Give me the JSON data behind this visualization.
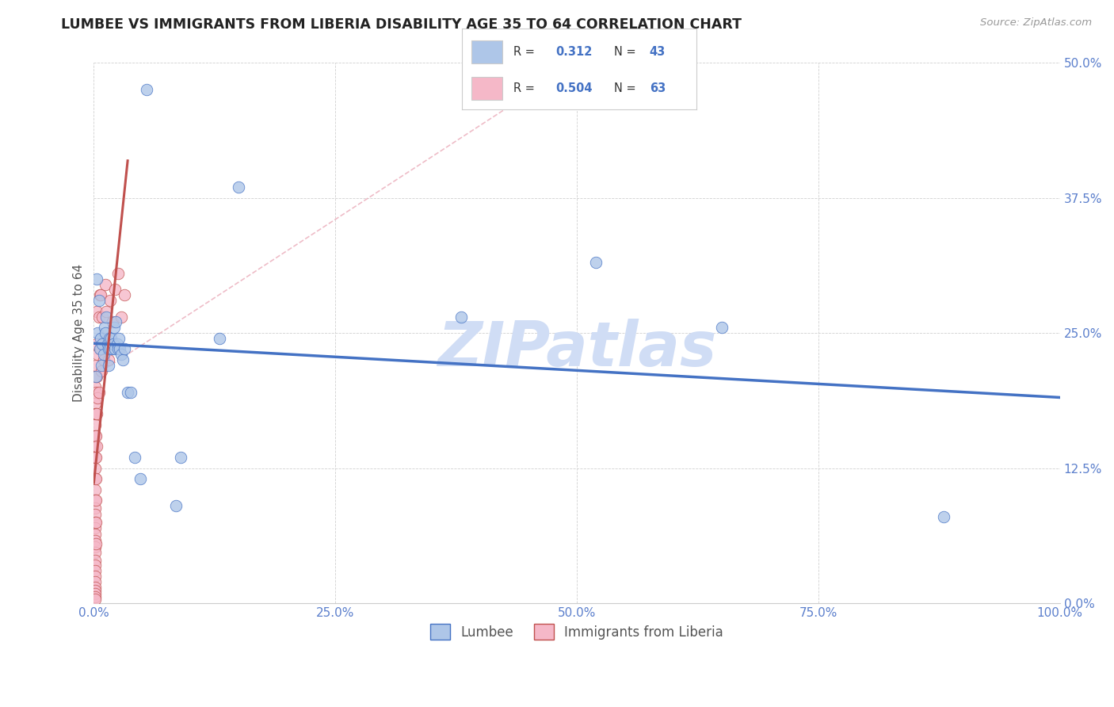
{
  "title": "LUMBEE VS IMMIGRANTS FROM LIBERIA DISABILITY AGE 35 TO 64 CORRELATION CHART",
  "source": "Source: ZipAtlas.com",
  "ylabel": "Disability Age 35 to 64",
  "legend_label1": "Lumbee",
  "legend_label2": "Immigrants from Liberia",
  "r1": 0.312,
  "n1": 43,
  "r2": 0.504,
  "n2": 63,
  "color1": "#aec6e8",
  "color2": "#f5b8c8",
  "line_color1": "#4472c4",
  "line_color2": "#c0504d",
  "xlim": [
    0,
    1.0
  ],
  "ylim": [
    0,
    0.5
  ],
  "xticks": [
    0.0,
    0.25,
    0.5,
    0.75,
    1.0
  ],
  "yticks": [
    0.0,
    0.125,
    0.25,
    0.375,
    0.5
  ],
  "background_color": "#ffffff",
  "grid_color": "#d0d0d0",
  "title_color": "#222222",
  "tick_color": "#5b7fcc",
  "watermark": "ZIPatlas",
  "watermark_color": "#d0ddf5",
  "lumbee_x": [
    0.002,
    0.003,
    0.004,
    0.005,
    0.006,
    0.007,
    0.008,
    0.009,
    0.01,
    0.011,
    0.012,
    0.013,
    0.014,
    0.015,
    0.015,
    0.016,
    0.017,
    0.018,
    0.019,
    0.02,
    0.021,
    0.022,
    0.023,
    0.024,
    0.025,
    0.026,
    0.027,
    0.028,
    0.03,
    0.032,
    0.035,
    0.038,
    0.042,
    0.048,
    0.055,
    0.085,
    0.09,
    0.13,
    0.15,
    0.38,
    0.52,
    0.65,
    0.88
  ],
  "lumbee_y": [
    0.21,
    0.3,
    0.25,
    0.28,
    0.235,
    0.245,
    0.22,
    0.24,
    0.23,
    0.255,
    0.25,
    0.265,
    0.24,
    0.235,
    0.22,
    0.245,
    0.235,
    0.245,
    0.235,
    0.24,
    0.255,
    0.235,
    0.26,
    0.24,
    0.235,
    0.245,
    0.235,
    0.23,
    0.225,
    0.235,
    0.195,
    0.195,
    0.135,
    0.115,
    0.475,
    0.09,
    0.135,
    0.245,
    0.385,
    0.265,
    0.315,
    0.255,
    0.08
  ],
  "liberia_x": [
    0.001,
    0.001,
    0.001,
    0.001,
    0.001,
    0.001,
    0.001,
    0.001,
    0.001,
    0.001,
    0.001,
    0.001,
    0.001,
    0.001,
    0.001,
    0.001,
    0.001,
    0.001,
    0.001,
    0.001,
    0.001,
    0.001,
    0.001,
    0.001,
    0.001,
    0.001,
    0.001,
    0.001,
    0.001,
    0.001,
    0.002,
    0.002,
    0.002,
    0.002,
    0.002,
    0.002,
    0.002,
    0.002,
    0.002,
    0.003,
    0.003,
    0.003,
    0.003,
    0.003,
    0.004,
    0.004,
    0.005,
    0.005,
    0.006,
    0.007,
    0.007,
    0.008,
    0.009,
    0.01,
    0.012,
    0.013,
    0.015,
    0.017,
    0.019,
    0.022,
    0.025,
    0.028,
    0.032
  ],
  "liberia_y": [
    0.21,
    0.2,
    0.185,
    0.175,
    0.165,
    0.155,
    0.145,
    0.135,
    0.125,
    0.115,
    0.105,
    0.095,
    0.088,
    0.082,
    0.075,
    0.07,
    0.064,
    0.058,
    0.052,
    0.047,
    0.04,
    0.035,
    0.03,
    0.025,
    0.02,
    0.015,
    0.012,
    0.009,
    0.006,
    0.004,
    0.22,
    0.195,
    0.175,
    0.155,
    0.135,
    0.115,
    0.095,
    0.075,
    0.055,
    0.27,
    0.24,
    0.21,
    0.175,
    0.145,
    0.23,
    0.19,
    0.265,
    0.195,
    0.285,
    0.285,
    0.235,
    0.215,
    0.265,
    0.225,
    0.295,
    0.27,
    0.225,
    0.28,
    0.26,
    0.29,
    0.305,
    0.265,
    0.285
  ]
}
